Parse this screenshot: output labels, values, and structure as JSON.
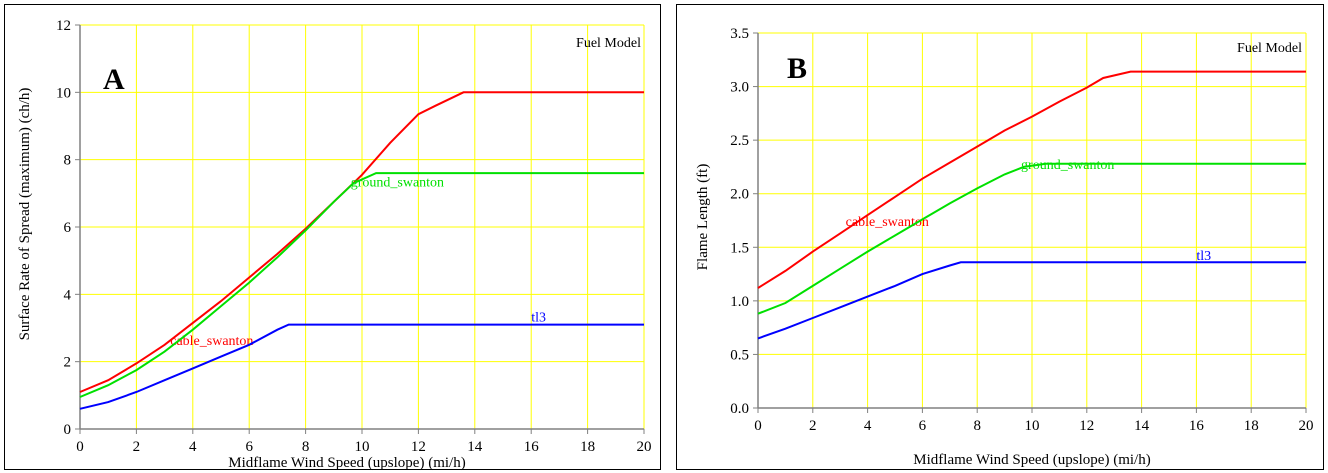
{
  "colors": {
    "grid": "#ffff00",
    "axis": "#808080",
    "cable_swanton": "#ff0000",
    "ground_swanton": "#00e000",
    "tl3": "#0000ff"
  },
  "chart_data": [
    {
      "panel_letter": "A",
      "type": "line",
      "legend_title": "Fuel Model",
      "xlabel": "Midflame Wind Speed (upslope) (mi/h)",
      "ylabel": "Surface Rate of Spread (maximum) (ch/h)",
      "xlim": [
        0,
        20
      ],
      "ylim": [
        0,
        12
      ],
      "x_ticks": [
        "0",
        "2",
        "4",
        "6",
        "8",
        "10",
        "12",
        "14",
        "16",
        "18",
        "20"
      ],
      "y_ticks": [
        "0",
        "2",
        "4",
        "6",
        "8",
        "10",
        "12"
      ],
      "grid": true,
      "series": [
        {
          "name": "cable_swanton",
          "color": "#ff0000",
          "label_x": 3.2,
          "label_y": 2.5,
          "x": [
            0,
            1,
            2,
            3,
            4,
            5,
            6,
            7,
            8,
            9,
            10,
            11,
            12,
            12.6,
            13.6,
            20
          ],
          "y": [
            1.1,
            1.45,
            1.95,
            2.5,
            3.15,
            3.8,
            4.5,
            5.2,
            5.95,
            6.75,
            7.55,
            8.5,
            9.35,
            9.6,
            10.0,
            10.0
          ]
        },
        {
          "name": "ground_swanton",
          "color": "#00e000",
          "label_x": 9.6,
          "label_y": 7.2,
          "x": [
            0,
            1,
            2,
            3,
            4,
            5,
            6,
            7,
            8,
            9,
            9.7,
            10.5,
            20
          ],
          "y": [
            0.95,
            1.3,
            1.75,
            2.3,
            2.95,
            3.65,
            4.35,
            5.1,
            5.9,
            6.75,
            7.3,
            7.6,
            7.6
          ]
        },
        {
          "name": "tl3",
          "color": "#0000ff",
          "label_x": 16.0,
          "label_y": 3.2,
          "x": [
            0,
            1,
            2,
            3,
            4,
            5,
            6,
            7,
            7.4,
            20
          ],
          "y": [
            0.6,
            0.8,
            1.1,
            1.45,
            1.8,
            2.15,
            2.5,
            2.95,
            3.1,
            3.1
          ]
        }
      ]
    },
    {
      "panel_letter": "B",
      "type": "line",
      "legend_title": "Fuel Model",
      "xlabel": "Midflame Wind Speed (upslope) (mi/h)",
      "ylabel": "Flame Length (ft)",
      "xlim": [
        0,
        20
      ],
      "ylim": [
        0,
        3.5
      ],
      "x_ticks": [
        "0",
        "2",
        "4",
        "6",
        "8",
        "10",
        "12",
        "14",
        "16",
        "18",
        "20"
      ],
      "y_ticks": [
        "0.0",
        "0.5",
        "1.0",
        "1.5",
        "2.0",
        "2.5",
        "3.0",
        "3.5"
      ],
      "grid": true,
      "series": [
        {
          "name": "cable_swanton",
          "color": "#ff0000",
          "label_x": 3.2,
          "label_y": 1.7,
          "x": [
            0,
            1,
            2,
            3,
            4,
            5,
            6,
            7,
            8,
            9,
            10,
            11,
            12,
            12.6,
            13.6,
            20
          ],
          "y": [
            1.12,
            1.28,
            1.46,
            1.63,
            1.8,
            1.97,
            2.14,
            2.29,
            2.44,
            2.59,
            2.72,
            2.86,
            2.99,
            3.08,
            3.14,
            3.14
          ]
        },
        {
          "name": "ground_swanton",
          "color": "#00e000",
          "label_x": 9.6,
          "label_y": 2.23,
          "x": [
            0,
            1,
            2,
            3,
            4,
            5,
            6,
            7,
            8,
            9,
            9.7,
            10.5,
            20
          ],
          "y": [
            0.88,
            0.98,
            1.14,
            1.3,
            1.46,
            1.61,
            1.76,
            1.91,
            2.05,
            2.18,
            2.25,
            2.28,
            2.28
          ]
        },
        {
          "name": "tl3",
          "color": "#0000ff",
          "label_x": 16.0,
          "label_y": 1.38,
          "x": [
            0,
            1,
            2,
            3,
            4,
            5,
            6,
            7,
            7.4,
            20
          ],
          "y": [
            0.65,
            0.74,
            0.84,
            0.94,
            1.04,
            1.14,
            1.25,
            1.33,
            1.36,
            1.36
          ]
        }
      ]
    }
  ]
}
